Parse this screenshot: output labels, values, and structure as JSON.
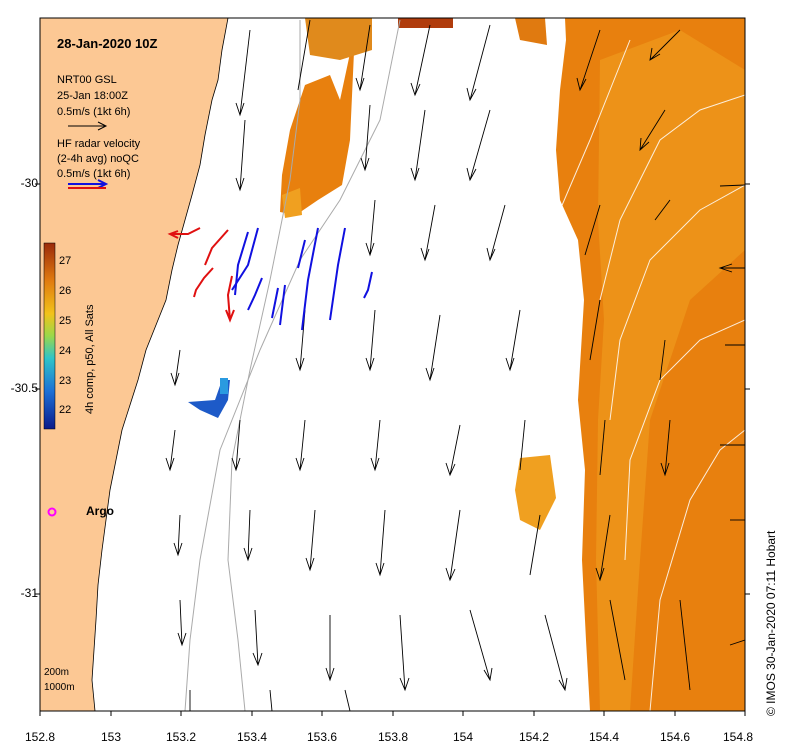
{
  "title": "28-Jan-2020 10Z",
  "legend": {
    "model_lines": [
      "NRT00 GSL",
      "25-Jan 18:00Z",
      "0.5m/s (1kt 6h)"
    ],
    "radar_lines": [
      "HF radar velocity",
      "(2-4h avg) noQC",
      "0.5m/s (1kt 6h)"
    ]
  },
  "colorbar": {
    "title": "4h comp, p50, All Sats",
    "ticks": [
      "22",
      "23",
      "24",
      "25",
      "26",
      "27"
    ],
    "colors": [
      "#0a1a8a",
      "#1d6fd6",
      "#2fc4c8",
      "#9ad84a",
      "#f2c21a",
      "#e07a10",
      "#9a2a0a"
    ]
  },
  "axes": {
    "lon_ticks": [
      "152.8",
      "153",
      "153.2",
      "153.4",
      "153.6",
      "153.8",
      "154",
      "154.2",
      "154.4",
      "154.6",
      "154.8"
    ],
    "lat_ticks": [
      "-30",
      "-30.5",
      "-31"
    ]
  },
  "argo_label": "Argo",
  "depth_labels": [
    "200m",
    "1000m"
  ],
  "copyright": "© IMOS 30-Jan-2020 07:11 Hobart",
  "colors": {
    "land": "#fcc894",
    "sst_warm": "#e8800e",
    "sst_mid": "#f0a020",
    "radar_coastal": "#e01010",
    "radar_offshore": "#1010e0",
    "argo": "#ff00ff"
  }
}
